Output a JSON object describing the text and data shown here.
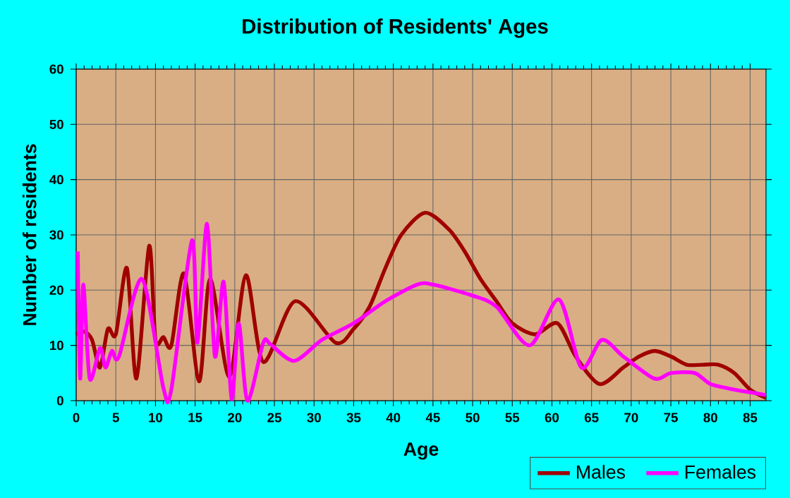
{
  "chart_data": {
    "type": "line",
    "title": "Distribution of Residents' Ages",
    "xlabel": "Age",
    "ylabel": "Number of residents",
    "xlim": [
      0,
      87
    ],
    "xticks": [
      0,
      5,
      10,
      15,
      20,
      25,
      30,
      35,
      40,
      45,
      50,
      55,
      60,
      65,
      70,
      75,
      80,
      85
    ],
    "ylim": [
      0,
      60
    ],
    "yticks": [
      0,
      10,
      20,
      30,
      40,
      50,
      60
    ],
    "grid": true,
    "legend": "bottom right",
    "marker": "none",
    "line_style": "solid",
    "series": [
      {
        "name": "Males",
        "color": "#a00000",
        "x": [
          0,
          1,
          2,
          3,
          4,
          5,
          6.4,
          7.6,
          9.2,
          10,
          11,
          12,
          13.6,
          15.5,
          16.9,
          19.3,
          21.4,
          23.6,
          27.6,
          32.7,
          35,
          37,
          39,
          41,
          44,
          47,
          49,
          51,
          53,
          55,
          57.9,
          60.7,
          63,
          66,
          69,
          71,
          73,
          75,
          77,
          79,
          81,
          83,
          85,
          87
        ],
        "values": [
          12,
          12.5,
          11,
          6,
          13,
          12,
          24,
          4,
          28,
          11,
          11.5,
          10,
          23,
          3.5,
          22,
          4.3,
          22.7,
          7,
          18,
          10.5,
          13,
          17,
          24,
          30,
          34,
          31,
          27,
          22,
          18,
          14,
          12,
          14,
          8,
          3,
          6,
          8,
          9,
          8,
          6.5,
          6.5,
          6.5,
          5,
          2,
          0.5
        ]
      },
      {
        "name": "Females",
        "color": "#ff00ff",
        "x": [
          0.2,
          0.5,
          0.9,
          1.7,
          3,
          3.7,
          4.5,
          5.4,
          8.3,
          11,
          12,
          14.6,
          15.3,
          16.5,
          17.5,
          18.6,
          19.6,
          20.5,
          21.6,
          23.6,
          24.5,
          27.5,
          31,
          35,
          39,
          43,
          45,
          50,
          53,
          57.2,
          60.9,
          63.7,
          66.3,
          69,
          72.9,
          75,
          78,
          80,
          83,
          85,
          87
        ],
        "values": [
          27,
          4,
          21,
          4,
          9.5,
          6,
          9,
          8,
          22,
          2.3,
          2,
          29,
          10.5,
          32,
          8,
          21.5,
          0.3,
          14,
          0,
          10.5,
          10.2,
          7.2,
          11,
          14,
          18,
          21,
          21,
          19,
          17,
          10,
          18.3,
          6,
          11,
          8,
          4,
          5,
          5,
          3,
          2,
          1.5,
          1
        ]
      }
    ]
  }
}
